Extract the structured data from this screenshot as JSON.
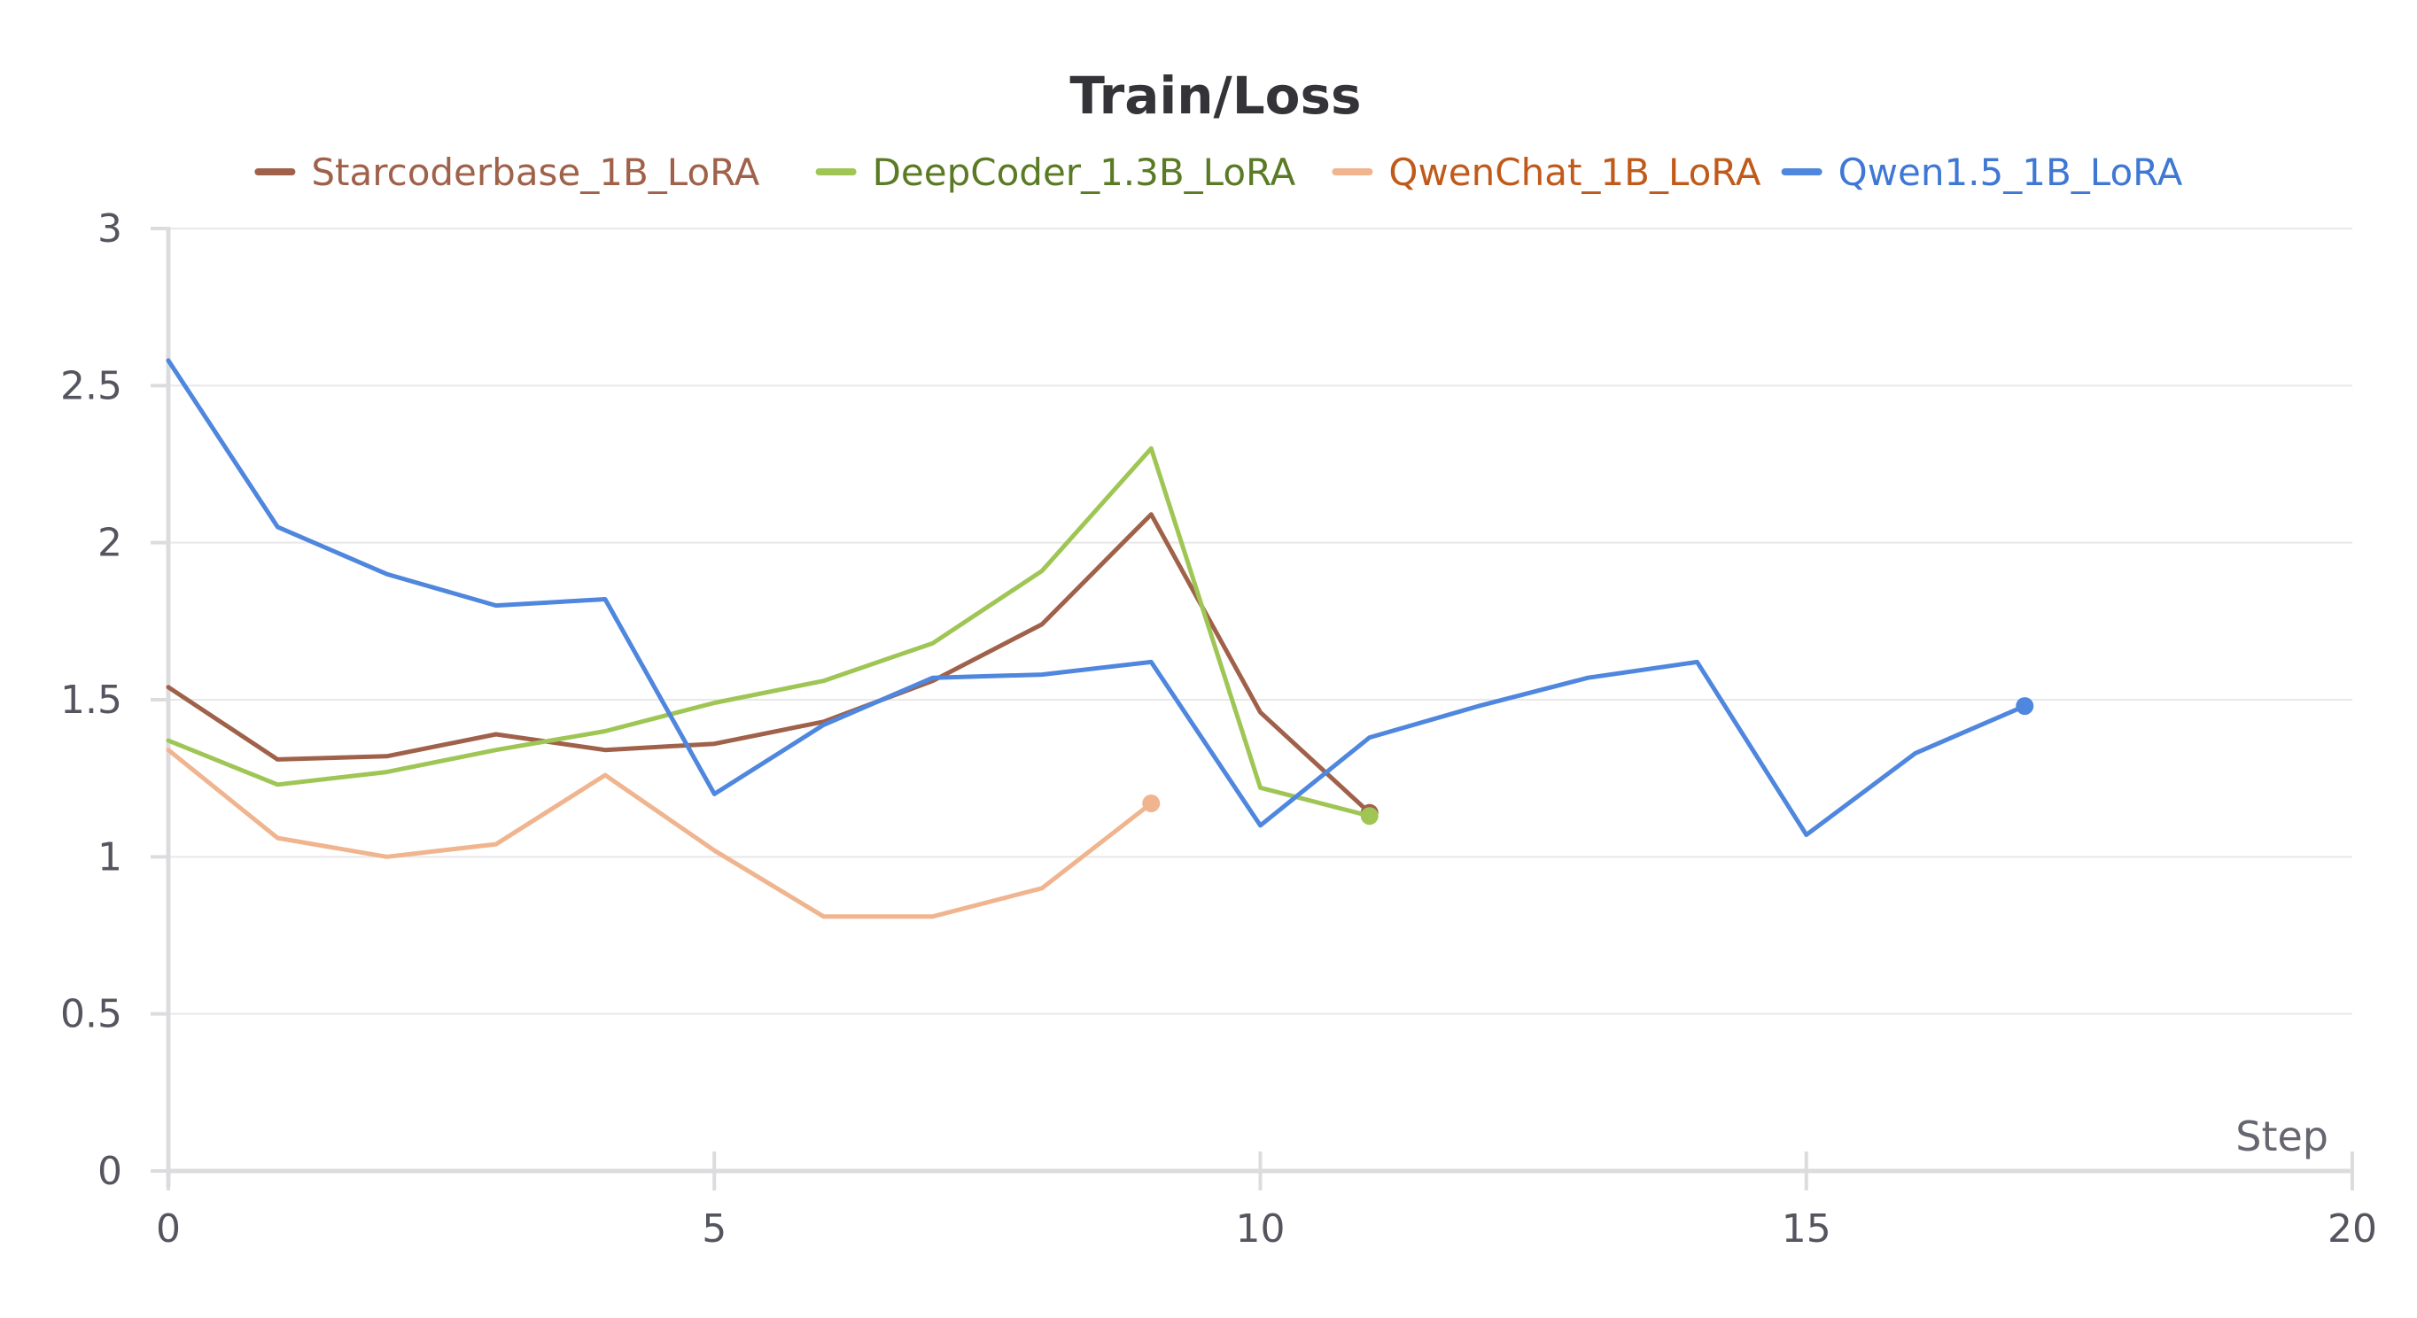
{
  "chart_data": {
    "type": "line",
    "title": "Train/Loss",
    "xlabel": "Step",
    "ylabel": "",
    "xlim": [
      0,
      20
    ],
    "ylim": [
      0,
      3
    ],
    "xticks": [
      "0",
      "5",
      "10",
      "15",
      "20"
    ],
    "yticks": [
      "0",
      "0.5",
      "1",
      "1.5",
      "2",
      "2.5",
      "3"
    ],
    "xtick_values": [
      0,
      5,
      10,
      15,
      20
    ],
    "ytick_values": [
      0,
      0.5,
      1,
      1.5,
      2,
      2.5,
      3
    ],
    "grid": "horizontal",
    "legend_position": "top",
    "series": [
      {
        "name": "Starcoderbase_1B_LoRA",
        "color": "#a0614a",
        "text_color": "#a0614a",
        "x": [
          0,
          1,
          2,
          3,
          4,
          5,
          6,
          7,
          8,
          9,
          10,
          11
        ],
        "y": [
          1.54,
          1.31,
          1.32,
          1.39,
          1.34,
          1.36,
          1.43,
          1.56,
          1.74,
          2.09,
          1.46,
          1.14
        ]
      },
      {
        "name": "DeepCoder_1.3B_LoRA",
        "color": "#9fc655",
        "text_color": "#5a7a24",
        "x": [
          0,
          1,
          2,
          3,
          4,
          5,
          6,
          7,
          8,
          9,
          10,
          11
        ],
        "y": [
          1.37,
          1.23,
          1.27,
          1.34,
          1.4,
          1.49,
          1.56,
          1.68,
          1.91,
          2.3,
          1.22,
          1.13
        ]
      },
      {
        "name": "QwenChat_1B_LoRA",
        "color": "#f0b48e",
        "text_color": "#c05a1a",
        "x": [
          0,
          1,
          2,
          3,
          4,
          5,
          6,
          7,
          8,
          9
        ],
        "y": [
          1.34,
          1.06,
          1.0,
          1.04,
          1.26,
          1.02,
          0.81,
          0.81,
          0.9,
          1.17
        ]
      },
      {
        "name": "Qwen1.5_1B_LoRA",
        "color": "#4f86de",
        "text_color": "#3f78d4",
        "x": [
          0,
          1,
          2,
          3,
          4,
          5,
          6,
          7,
          8,
          9,
          10,
          11,
          12,
          13,
          14,
          15,
          16,
          17
        ],
        "y": [
          2.58,
          2.05,
          1.9,
          1.8,
          1.82,
          1.2,
          1.42,
          1.57,
          1.58,
          1.62,
          1.1,
          1.38,
          1.48,
          1.57,
          1.62,
          1.07,
          1.33,
          1.48
        ]
      }
    ]
  }
}
